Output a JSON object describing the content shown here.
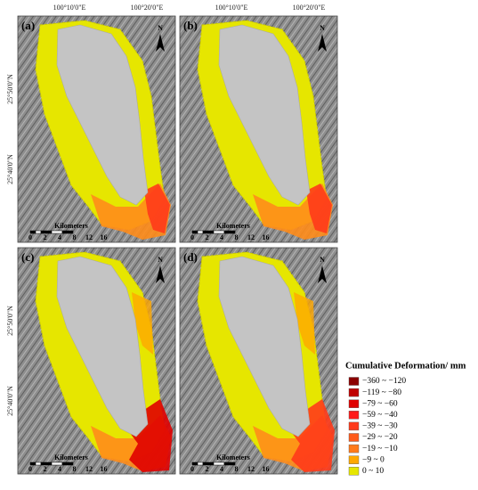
{
  "panels": [
    {
      "label": "(a)"
    },
    {
      "label": "(b)"
    },
    {
      "label": "(c)"
    },
    {
      "label": "(d)"
    }
  ],
  "axes": {
    "longitude": [
      "100°10'0\"E",
      "100°20'0\"E"
    ],
    "latitude": [
      "25°50'0\"N",
      "25°40'0\"N"
    ]
  },
  "north": "N",
  "scale_bar": {
    "title": "Kilometers",
    "ticks": [
      0,
      2,
      4,
      8,
      12,
      16
    ]
  },
  "legend": {
    "title": "Cumulative Deformation/ mm",
    "items": [
      {
        "label": "−360 ~ −120",
        "color": "#8b0000"
      },
      {
        "label": "−119 ~ −80",
        "color": "#c00000"
      },
      {
        "label": "−79 ~ −60",
        "color": "#e00000"
      },
      {
        "label": "−59 ~ −40",
        "color": "#ff1a1a"
      },
      {
        "label": "−39 ~ −30",
        "color": "#ff3a1a"
      },
      {
        "label": "−29 ~ −20",
        "color": "#ff5a1a"
      },
      {
        "label": "−19 ~ −10",
        "color": "#ff7a1a"
      },
      {
        "label": "−9 ~ 0",
        "color": "#ffa800"
      },
      {
        "label": "0 ~ 10",
        "color": "#e6e600"
      }
    ]
  }
}
